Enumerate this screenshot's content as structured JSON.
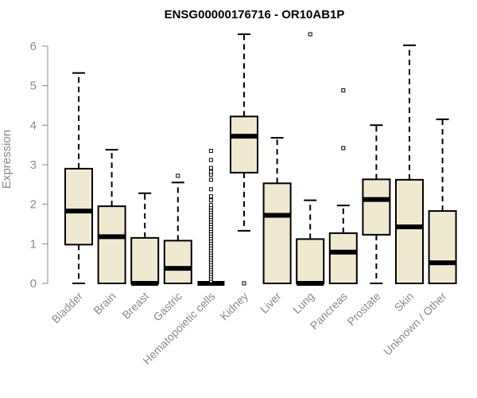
{
  "chart_data": {
    "type": "boxplot",
    "title": "ENSG00000176716 - OR10AB1P",
    "xlabel": "",
    "ylabel": "Expression",
    "ylim": [
      0,
      6.3
    ],
    "yticks": [
      0,
      1,
      2,
      3,
      4,
      5,
      6
    ],
    "box_color": "#efe9d2",
    "outline_color": "#000000",
    "axis_color": "#8a8a8a",
    "categories": [
      "Bladder",
      "Brain",
      "Breast",
      "Gastric",
      "Hematopoietic cells",
      "Kidney",
      "Liver",
      "Lung",
      "Pancreas",
      "Prostate",
      "Skin",
      "Unknown / Other"
    ],
    "boxes": [
      {
        "category": "Bladder",
        "whisker_low": 0,
        "q1": 0.98,
        "median": 1.83,
        "q3": 2.9,
        "whisker_high": 5.32,
        "outliers": []
      },
      {
        "category": "Brain",
        "whisker_low": 0,
        "q1": 0,
        "median": 1.18,
        "q3": 1.95,
        "whisker_high": 3.38,
        "outliers": []
      },
      {
        "category": "Breast",
        "whisker_low": 0,
        "q1": 0,
        "median": 0,
        "q3": 1.15,
        "whisker_high": 2.28,
        "outliers": []
      },
      {
        "category": "Gastric",
        "whisker_low": 0,
        "q1": 0,
        "median": 0.38,
        "q3": 1.08,
        "whisker_high": 2.55,
        "outliers": [
          2.72
        ]
      },
      {
        "category": "Hematopoietic cells",
        "whisker_low": 0,
        "q1": 0,
        "median": 0,
        "q3": 0,
        "whisker_high": 0,
        "outliers": [
          0.06,
          0.12,
          0.18,
          0.24,
          0.3,
          0.36,
          0.42,
          0.48,
          0.54,
          0.6,
          0.66,
          0.72,
          0.78,
          0.84,
          0.9,
          0.96,
          1.02,
          1.08,
          1.14,
          1.2,
          1.26,
          1.32,
          1.38,
          1.44,
          1.5,
          1.56,
          1.62,
          1.68,
          1.74,
          1.8,
          1.86,
          1.92,
          1.98,
          2.1,
          2.2,
          2.38,
          2.62,
          2.75,
          2.82,
          2.92,
          3.12,
          3.35
        ]
      },
      {
        "category": "Kidney",
        "whisker_low": 1.33,
        "q1": 2.8,
        "median": 3.72,
        "q3": 4.22,
        "whisker_high": 6.3,
        "outliers": [
          0
        ]
      },
      {
        "category": "Liver",
        "whisker_low": 0,
        "q1": 0,
        "median": 1.72,
        "q3": 2.53,
        "whisker_high": 3.68,
        "outliers": []
      },
      {
        "category": "Lung",
        "whisker_low": 0,
        "q1": 0,
        "median": 0,
        "q3": 1.12,
        "whisker_high": 2.1,
        "outliers": [
          6.3
        ]
      },
      {
        "category": "Pancreas",
        "whisker_low": 0,
        "q1": 0,
        "median": 0.79,
        "q3": 1.27,
        "whisker_high": 1.97,
        "outliers": [
          3.42,
          4.88
        ]
      },
      {
        "category": "Prostate",
        "whisker_low": 0,
        "q1": 1.23,
        "median": 2.12,
        "q3": 2.63,
        "whisker_high": 4.0,
        "outliers": []
      },
      {
        "category": "Skin",
        "whisker_low": 0,
        "q1": 0,
        "median": 1.43,
        "q3": 2.62,
        "whisker_high": 6.02,
        "outliers": []
      },
      {
        "category": "Unknown / Other",
        "whisker_low": 0,
        "q1": 0,
        "median": 0.52,
        "q3": 1.83,
        "whisker_high": 4.15,
        "outliers": []
      }
    ]
  }
}
